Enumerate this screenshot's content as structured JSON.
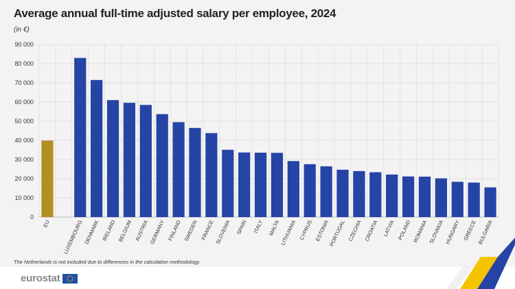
{
  "title": "Average annual full-time adjusted salary per employee, 2024",
  "unit": "(in €)",
  "footnote": "The Netherlands is not included due to differences in the calculation methodology.",
  "logo": "eurostat",
  "colors": {
    "eu": "#b38f23",
    "country": "#2643a6",
    "grid": "#d8d8d8"
  },
  "chart_data": {
    "type": "bar",
    "title": "Average annual full-time adjusted salary per employee, 2024",
    "ylabel": "(in €)",
    "ylim": [
      0,
      90000
    ],
    "yticks": [
      0,
      10000,
      20000,
      30000,
      40000,
      50000,
      60000,
      70000,
      80000,
      90000
    ],
    "ytick_labels": [
      "0",
      "10 000",
      "20 000",
      "30 000",
      "40 000",
      "50 000",
      "60 000",
      "70 000",
      "80 000",
      "90 000"
    ],
    "grid": true,
    "categories": [
      "EU",
      "LUXEMBOURG",
      "DENMARK",
      "IRELAND",
      "BELGIUM",
      "AUSTRIA",
      "GERMANY",
      "FINLAND",
      "SWEDEN",
      "FRANCE",
      "SLOVENIA",
      "SPAIN",
      "ITALY",
      "MALTA",
      "LITHUANIA",
      "CYPRUS",
      "ESTONIA",
      "PORTUGAL",
      "CZECHIA",
      "CROATIA",
      "LATVIA",
      "POLAND",
      "ROMANIA",
      "SLOVAKIA",
      "HUNGARY",
      "GREECE",
      "BULGARIA"
    ],
    "values": [
      39900,
      83000,
      71500,
      61000,
      59600,
      58500,
      53700,
      49500,
      46500,
      43800,
      35100,
      33700,
      33600,
      33500,
      29200,
      27600,
      26500,
      24700,
      24000,
      23400,
      22200,
      21200,
      21100,
      20200,
      18400,
      18000,
      15500
    ]
  }
}
